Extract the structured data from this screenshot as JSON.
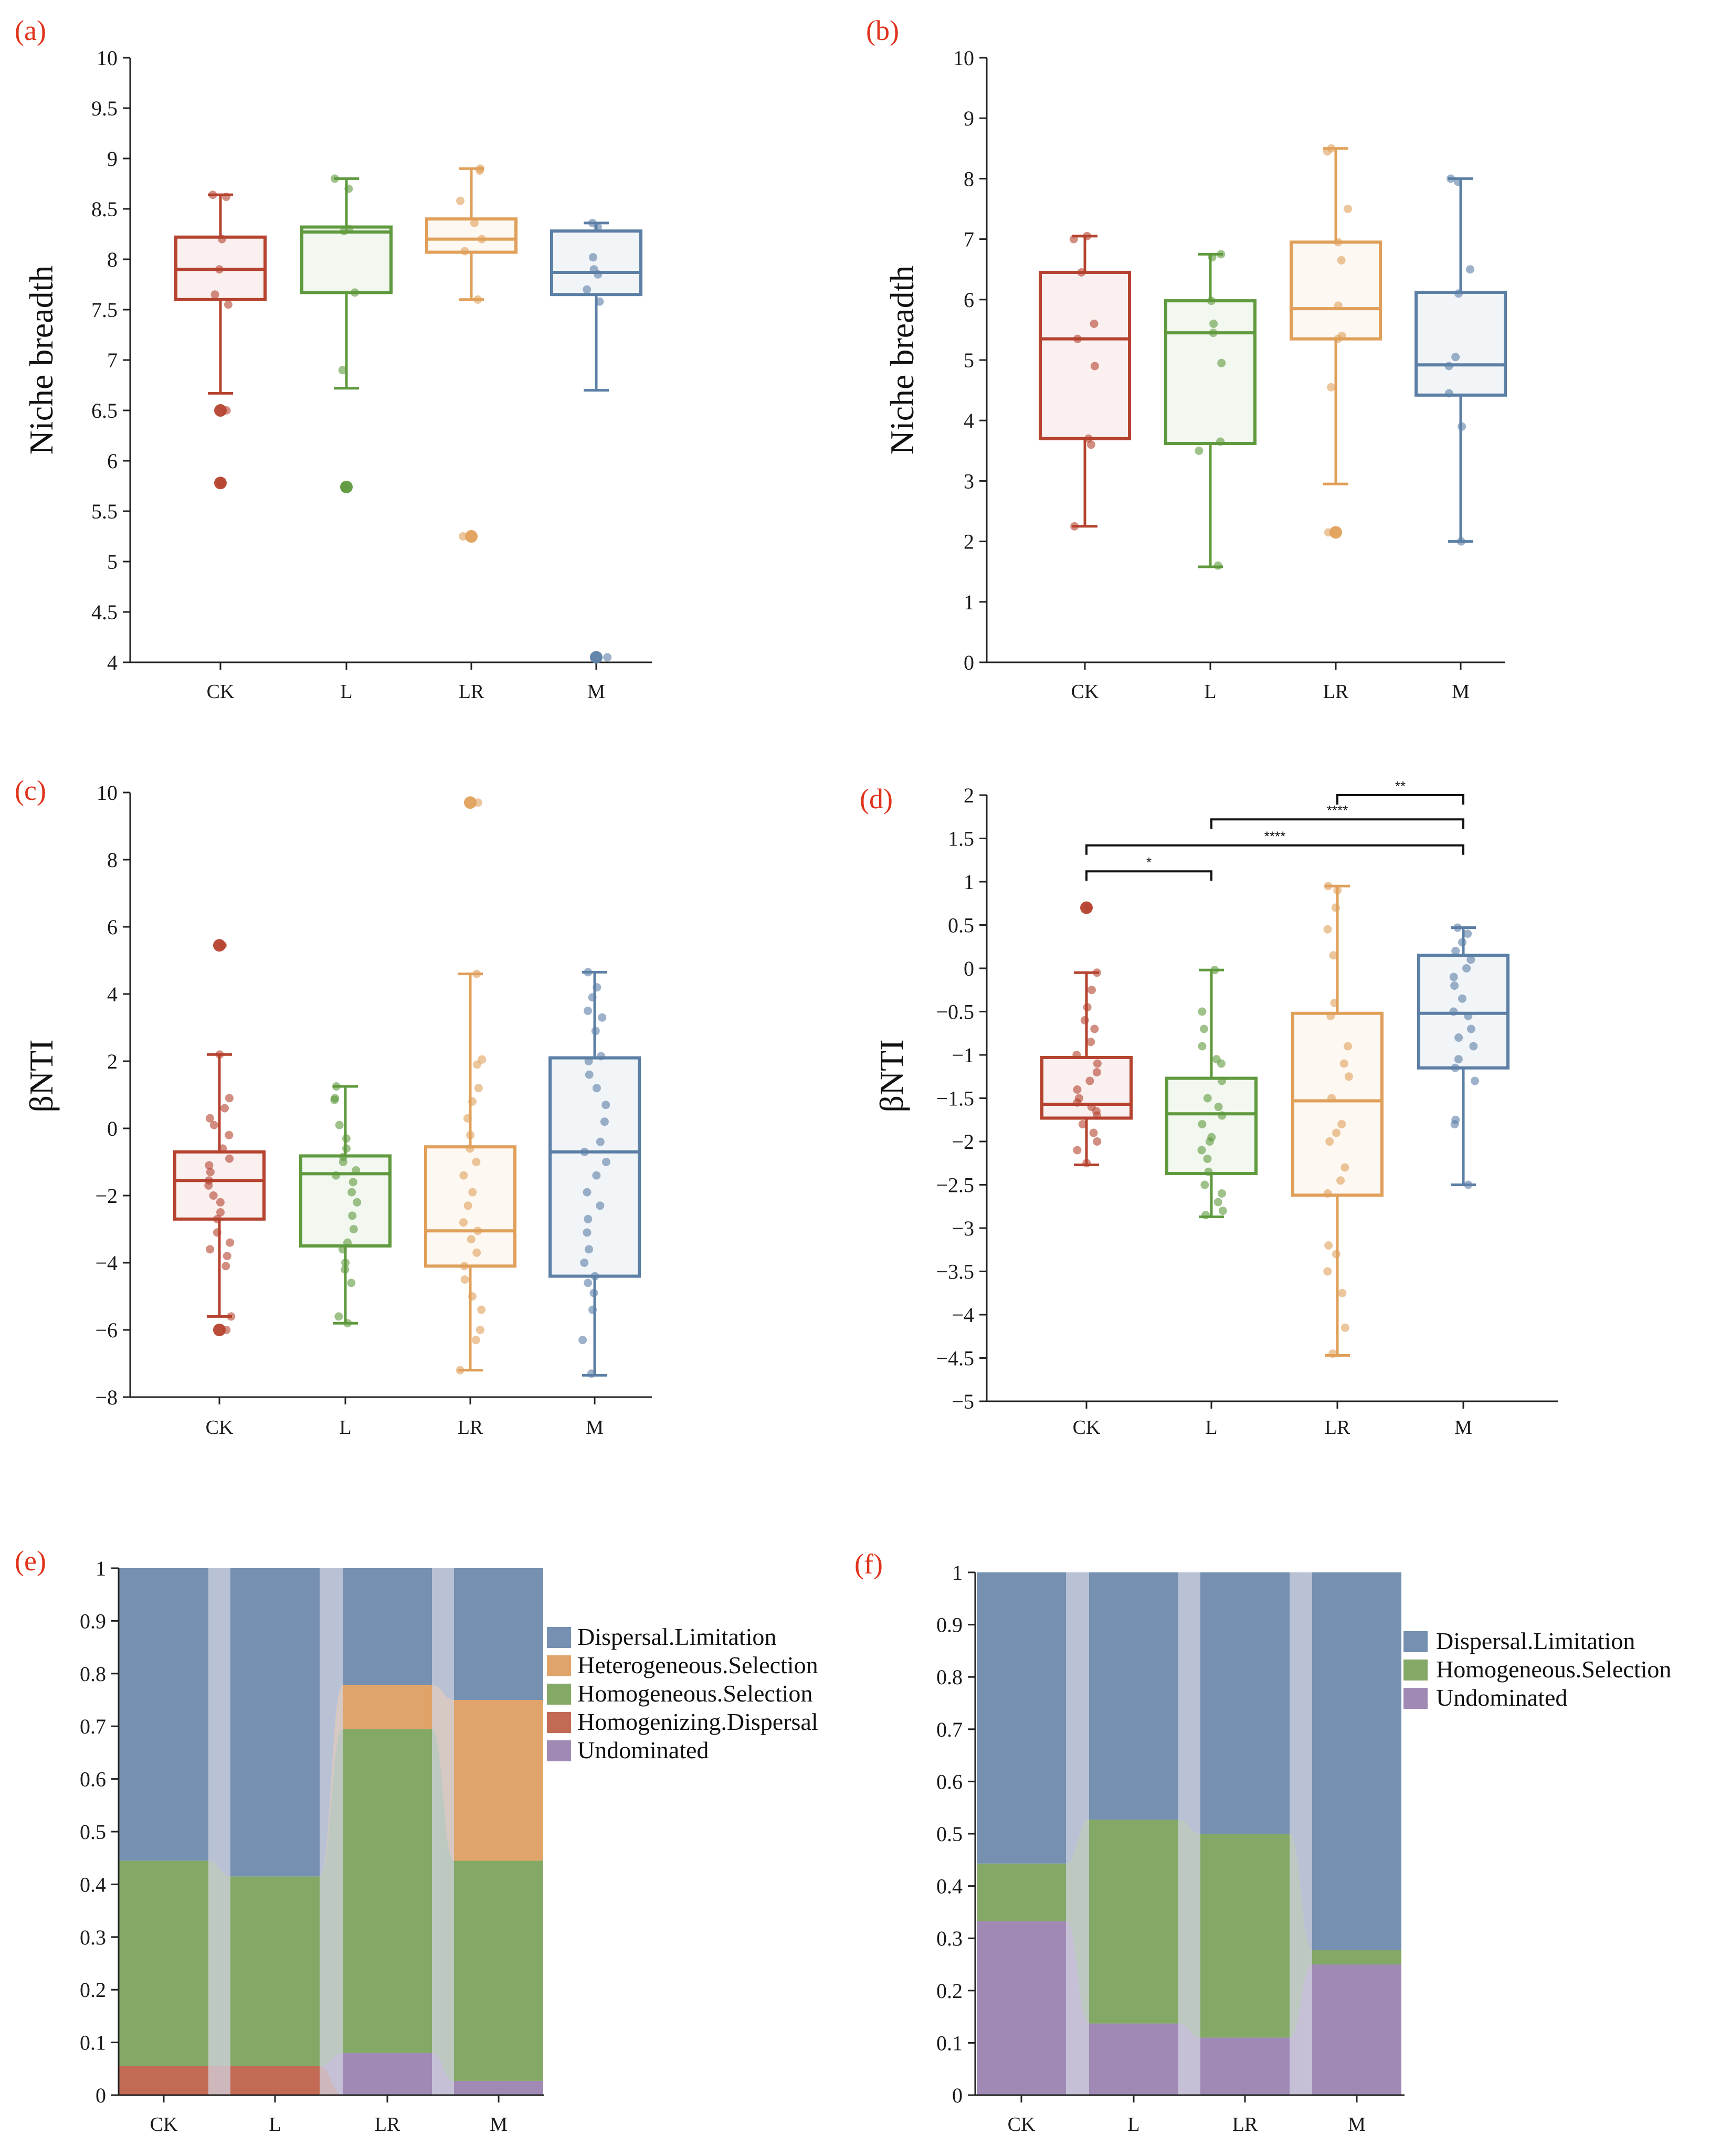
{
  "figure": {
    "group_colors": [
      "#b5432f",
      "#5f9a3e",
      "#e0a05a",
      "#5c7fa6"
    ],
    "group_fills": [
      "rgba(181,67,47,0.08)",
      "rgba(95,154,62,0.08)",
      "rgba(224,160,90,0.08)",
      "rgba(92,127,166,0.08)"
    ],
    "stack_colors": {
      "Dispersal.Limitation": "#7590b0",
      "Heterogeneous.Selection": "#e0a46a",
      "Homogeneous.Selection": "#84a866",
      "Homogenizing.Dispersal": "#c26a54",
      "Undominated": "#a08ab5"
    },
    "gap_color": "#d3d6e3"
  },
  "chart_data": [
    {
      "id": "a",
      "type": "box",
      "panel_label": "(a)",
      "ylabel": "Niche breadth",
      "ylim": [
        4,
        10
      ],
      "yticks": [
        "4",
        "4.5",
        "5",
        "5.5",
        "6",
        "6.5",
        "7",
        "7.5",
        "8",
        "8.5",
        "9",
        "9.5",
        "10"
      ],
      "categories": [
        "CK",
        "L",
        "LR",
        "M"
      ],
      "boxes": [
        {
          "name": "CK",
          "min": 6.67,
          "q1": 7.6,
          "median": 7.9,
          "q3": 8.22,
          "max": 8.64,
          "points": [
            8.64,
            8.62,
            8.2,
            7.9,
            7.65,
            7.55,
            6.5,
            5.78
          ]
        },
        {
          "name": "L",
          "min": 6.72,
          "q1": 7.67,
          "median": 8.27,
          "q3": 8.32,
          "max": 8.8,
          "points": [
            8.8,
            8.7,
            8.3,
            8.28,
            7.67,
            6.9,
            5.74
          ]
        },
        {
          "name": "LR",
          "min": 7.6,
          "q1": 8.07,
          "median": 8.2,
          "q3": 8.4,
          "max": 8.9,
          "points": [
            8.9,
            8.88,
            8.58,
            8.36,
            8.2,
            8.08,
            7.6,
            5.25
          ]
        },
        {
          "name": "M",
          "min": 6.7,
          "q1": 7.65,
          "median": 7.87,
          "q3": 8.28,
          "max": 8.36,
          "points": [
            8.36,
            8.32,
            8.02,
            7.9,
            7.85,
            7.7,
            7.58,
            4.05
          ]
        }
      ]
    },
    {
      "id": "b",
      "type": "box",
      "panel_label": "(b)",
      "ylabel": "Niche breadth",
      "ylim": [
        0,
        10
      ],
      "yticks": [
        "0",
        "1",
        "2",
        "3",
        "4",
        "5",
        "6",
        "7",
        "8",
        "9",
        "10"
      ],
      "categories": [
        "CK",
        "L",
        "LR",
        "M"
      ],
      "boxes": [
        {
          "name": "CK",
          "min": 2.25,
          "q1": 3.7,
          "median": 5.35,
          "q3": 6.45,
          "max": 7.05,
          "points": [
            7.05,
            7.0,
            6.45,
            5.6,
            5.35,
            4.9,
            3.7,
            3.6,
            2.25
          ]
        },
        {
          "name": "L",
          "min": 1.58,
          "q1": 3.62,
          "median": 5.45,
          "q3": 5.98,
          "max": 6.75,
          "points": [
            6.75,
            6.7,
            5.98,
            5.6,
            5.45,
            4.95,
            3.65,
            3.5,
            1.6
          ]
        },
        {
          "name": "LR",
          "min": 2.95,
          "q1": 5.35,
          "median": 5.85,
          "q3": 6.95,
          "max": 8.5,
          "points": [
            8.5,
            8.45,
            7.5,
            6.95,
            6.65,
            5.9,
            5.4,
            5.35,
            4.55,
            2.15
          ]
        },
        {
          "name": "M",
          "min": 2.0,
          "q1": 4.42,
          "median": 4.92,
          "q3": 6.12,
          "max": 8.0,
          "points": [
            8.0,
            7.95,
            6.5,
            6.1,
            5.05,
            4.9,
            4.45,
            3.9,
            2.0
          ]
        }
      ]
    },
    {
      "id": "c",
      "type": "box",
      "panel_label": "(c)",
      "ylabel": "βNTI",
      "ylim": [
        -8,
        10
      ],
      "yticks": [
        "−8",
        "−6",
        "−4",
        "−2",
        "0",
        "2",
        "4",
        "6",
        "8",
        "10"
      ],
      "categories": [
        "CK",
        "L",
        "LR",
        "M"
      ],
      "boxes": [
        {
          "name": "CK",
          "min": -5.6,
          "q1": -2.7,
          "median": -1.55,
          "q3": -0.7,
          "max": 2.2,
          "points": [
            5.45,
            2.2,
            0.9,
            0.6,
            0.3,
            0.1,
            -0.2,
            -0.6,
            -0.9,
            -1.1,
            -1.3,
            -1.55,
            -1.7,
            -2.0,
            -2.2,
            -2.5,
            -2.7,
            -3.1,
            -3.4,
            -3.6,
            -3.8,
            -4.1,
            -5.6,
            -6.0
          ]
        },
        {
          "name": "L",
          "min": -5.8,
          "q1": -3.5,
          "median": -1.35,
          "q3": -0.82,
          "max": 1.25,
          "points": [
            1.25,
            0.9,
            0.85,
            0.1,
            -0.3,
            -0.6,
            -0.85,
            -1.0,
            -1.25,
            -1.4,
            -1.6,
            -1.9,
            -2.2,
            -2.6,
            -3.0,
            -3.4,
            -3.6,
            -4.0,
            -4.2,
            -4.6,
            -5.6,
            -5.8
          ]
        },
        {
          "name": "LR",
          "min": -7.2,
          "q1": -4.1,
          "median": -3.05,
          "q3": -0.55,
          "max": 4.6,
          "points": [
            9.7,
            4.6,
            2.05,
            1.9,
            1.2,
            0.8,
            0.3,
            -0.2,
            -0.6,
            -1.0,
            -1.4,
            -1.9,
            -2.3,
            -2.8,
            -3.05,
            -3.3,
            -3.7,
            -4.1,
            -4.5,
            -5.0,
            -5.4,
            -6.0,
            -6.3,
            -7.2
          ]
        },
        {
          "name": "M",
          "min": -7.35,
          "q1": -4.4,
          "median": -0.7,
          "q3": 2.1,
          "max": 4.65,
          "points": [
            4.65,
            4.2,
            3.9,
            3.5,
            3.3,
            2.9,
            2.15,
            2.0,
            1.6,
            1.2,
            0.7,
            0.2,
            -0.4,
            -0.7,
            -1.0,
            -1.4,
            -1.9,
            -2.3,
            -2.7,
            -3.1,
            -3.6,
            -4.0,
            -4.4,
            -4.6,
            -4.9,
            -5.4,
            -6.3,
            -7.3
          ]
        }
      ]
    },
    {
      "id": "d",
      "type": "box",
      "panel_label": "(d)",
      "ylabel": "βNTI",
      "ylim": [
        -5,
        2
      ],
      "yticks": [
        "−5",
        "−4.5",
        "−4",
        "−3.5",
        "−3",
        "−2.5",
        "−2",
        "−1.5",
        "−1",
        "−0.5",
        "0",
        "0.5",
        "1",
        "1.5",
        "2"
      ],
      "categories": [
        "CK",
        "L",
        "LR",
        "M"
      ],
      "boxes": [
        {
          "name": "CK",
          "min": -2.27,
          "q1": -1.73,
          "median": -1.57,
          "q3": -1.03,
          "max": -0.05,
          "points": [
            0.7,
            -0.05,
            -0.25,
            -0.45,
            -0.6,
            -0.7,
            -0.85,
            -1.0,
            -1.1,
            -1.2,
            -1.3,
            -1.4,
            -1.5,
            -1.55,
            -1.6,
            -1.65,
            -1.7,
            -1.8,
            -1.9,
            -2.0,
            -2.1,
            -2.25
          ]
        },
        {
          "name": "L",
          "min": -2.87,
          "q1": -2.37,
          "median": -1.68,
          "q3": -1.27,
          "max": -0.02,
          "points": [
            -0.02,
            -0.5,
            -0.7,
            -0.9,
            -1.05,
            -1.1,
            -1.3,
            -1.5,
            -1.6,
            -1.7,
            -1.8,
            -1.95,
            -2.0,
            -2.1,
            -2.2,
            -2.35,
            -2.5,
            -2.6,
            -2.7,
            -2.8,
            -2.85
          ]
        },
        {
          "name": "LR",
          "min": -4.47,
          "q1": -2.62,
          "median": -1.53,
          "q3": -0.52,
          "max": 0.95,
          "points": [
            0.95,
            0.9,
            0.7,
            0.45,
            0.15,
            -0.4,
            -0.55,
            -0.9,
            -1.1,
            -1.25,
            -1.5,
            -1.8,
            -1.9,
            -2.0,
            -2.3,
            -2.45,
            -2.6,
            -3.2,
            -3.3,
            -3.5,
            -3.75,
            -4.15,
            -4.45
          ]
        },
        {
          "name": "M",
          "min": -2.5,
          "q1": -1.15,
          "median": -0.52,
          "q3": 0.15,
          "max": 0.47,
          "points": [
            0.47,
            0.4,
            0.3,
            0.2,
            0.1,
            0.0,
            -0.1,
            -0.2,
            -0.35,
            -0.5,
            -0.55,
            -0.7,
            -0.8,
            -0.9,
            -1.05,
            -1.15,
            -1.3,
            -1.75,
            -1.8,
            -2.5
          ]
        }
      ],
      "significance": [
        {
          "from": 2,
          "to": 3,
          "y": 2.0,
          "label": "**"
        },
        {
          "from": 1,
          "to": 3,
          "y": 1.72,
          "label": "****"
        },
        {
          "from": 0,
          "to": 3,
          "y": 1.42,
          "label": "****"
        },
        {
          "from": 0,
          "to": 1,
          "y": 1.12,
          "label": "*"
        }
      ]
    },
    {
      "id": "e",
      "type": "stacked-bar",
      "panel_label": "(e)",
      "ylim": [
        0,
        1
      ],
      "yticks": [
        "0",
        "0.1",
        "0.2",
        "0.3",
        "0.4",
        "0.5",
        "0.6",
        "0.7",
        "0.8",
        "0.9",
        "1"
      ],
      "categories": [
        "CK",
        "L",
        "LR",
        "M"
      ],
      "series": [
        {
          "name": "Homogenizing.Dispersal",
          "values": [
            0.055,
            0.055,
            0,
            0
          ]
        },
        {
          "name": "Undominated",
          "values": [
            0,
            0,
            0.08,
            0.027
          ]
        },
        {
          "name": "Homogeneous.Selection",
          "values": [
            0.39,
            0.36,
            0.615,
            0.418
          ]
        },
        {
          "name": "Heterogeneous.Selection",
          "values": [
            0,
            0,
            0.083,
            0.305
          ]
        },
        {
          "name": "Dispersal.Limitation",
          "values": [
            0.555,
            0.585,
            0.222,
            0.25
          ]
        }
      ],
      "legend": [
        "Dispersal.Limitation",
        "Heterogeneous.Selection",
        "Homogeneous.Selection",
        "Homogenizing.Dispersal",
        "Undominated"
      ]
    },
    {
      "id": "f",
      "type": "stacked-bar",
      "panel_label": "(f)",
      "ylim": [
        0,
        1
      ],
      "yticks": [
        "0",
        "0.1",
        "0.2",
        "0.3",
        "0.4",
        "0.5",
        "0.6",
        "0.7",
        "0.8",
        "0.9",
        "1"
      ],
      "categories": [
        "CK",
        "L",
        "LR",
        "M"
      ],
      "series": [
        {
          "name": "Undominated",
          "values": [
            0.333,
            0.137,
            0.11,
            0.25
          ]
        },
        {
          "name": "Homogeneous.Selection",
          "values": [
            0.11,
            0.39,
            0.39,
            0.028
          ]
        },
        {
          "name": "Dispersal.Limitation",
          "values": [
            0.557,
            0.473,
            0.5,
            0.722
          ]
        }
      ],
      "legend": [
        "Dispersal.Limitation",
        "Homogeneous.Selection",
        "Undominated"
      ]
    }
  ]
}
